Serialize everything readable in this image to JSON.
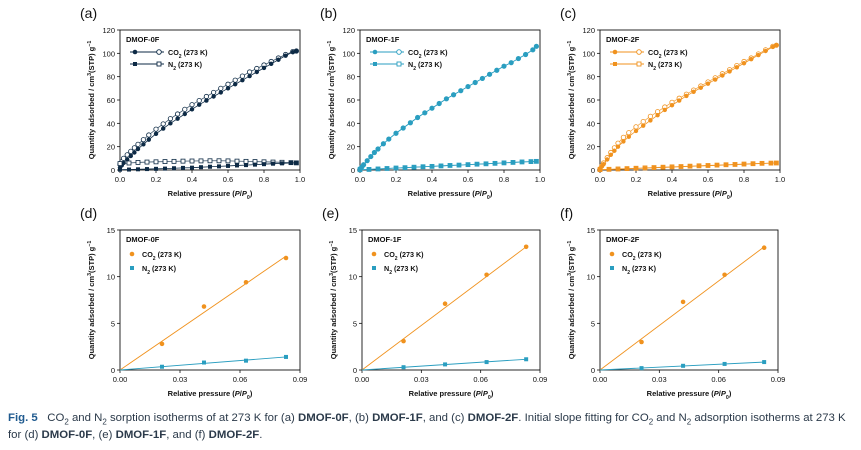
{
  "chart_data": [
    {
      "panel": "(a)",
      "type": "scatter",
      "title": "DMOF-0F",
      "xlabel": "Relative pressure (P/P0)",
      "ylabel": "Quantity adsorbed / cm3(STP) g-1",
      "xlim": [
        0,
        1.0
      ],
      "ylim": [
        0,
        120
      ],
      "xticks": [
        "0.0",
        "0.2",
        "0.4",
        "0.6",
        "0.8",
        "1.0"
      ],
      "yticks": [
        "0",
        "20",
        "40",
        "60",
        "80",
        "100",
        "120"
      ],
      "color": "#0d2a45",
      "series": [
        {
          "name": "CO2 (273 K)",
          "gas": "CO2",
          "x": [
            0.0,
            0.01,
            0.02,
            0.04,
            0.06,
            0.08,
            0.1,
            0.13,
            0.16,
            0.2,
            0.24,
            0.28,
            0.32,
            0.36,
            0.4,
            0.44,
            0.48,
            0.52,
            0.56,
            0.6,
            0.64,
            0.68,
            0.72,
            0.76,
            0.8,
            0.84,
            0.88,
            0.92,
            0.96,
            0.98
          ],
          "ads": [
            2,
            4,
            6,
            9,
            12,
            15,
            18,
            22,
            26,
            31,
            35.5,
            40,
            44,
            48,
            52,
            56,
            59.5,
            63,
            66.5,
            70,
            73.5,
            77,
            80.5,
            84,
            87.5,
            91,
            94.5,
            98,
            101,
            102
          ],
          "des": [
            5,
            7,
            10,
            13,
            16,
            19,
            22,
            26,
            30,
            35,
            39.5,
            44,
            48,
            52,
            56,
            59.5,
            63,
            66.5,
            70,
            73.5,
            77,
            80.5,
            84,
            87,
            90,
            93,
            96,
            99,
            101.5,
            102
          ]
        },
        {
          "name": "N2 (273 K)",
          "gas": "N2",
          "x": [
            0.0,
            0.05,
            0.1,
            0.15,
            0.2,
            0.25,
            0.3,
            0.35,
            0.4,
            0.45,
            0.5,
            0.55,
            0.6,
            0.65,
            0.7,
            0.75,
            0.8,
            0.85,
            0.9,
            0.95,
            0.98
          ],
          "ads": [
            0.3,
            0.4,
            0.6,
            0.8,
            1,
            1.2,
            1.5,
            1.8,
            2,
            2.4,
            2.8,
            3.1,
            3.5,
            3.9,
            4.2,
            4.6,
            5,
            5.4,
            5.7,
            6,
            6.1
          ],
          "des": [
            5.5,
            6,
            6.5,
            6.8,
            7,
            7.2,
            7.4,
            7.6,
            7.7,
            7.8,
            7.9,
            7.9,
            7.8,
            7.6,
            7.4,
            7.2,
            7,
            6.8,
            6.6,
            6.3,
            6.1
          ]
        }
      ]
    },
    {
      "panel": "(b)",
      "type": "scatter",
      "title": "DMOF-1F",
      "xlabel": "Relative pressure (P/P0)",
      "ylabel": "Quantity adsorbed / cm3(STP) g-1",
      "xlim": [
        0,
        1.0
      ],
      "ylim": [
        0,
        120
      ],
      "xticks": [
        "0.0",
        "0.2",
        "0.4",
        "0.6",
        "0.8",
        "1.0"
      ],
      "yticks": [
        "0",
        "20",
        "40",
        "60",
        "80",
        "100",
        "120"
      ],
      "color": "#2a9ec0",
      "series": [
        {
          "name": "CO2 (273 K)",
          "gas": "CO2",
          "x": [
            0.0,
            0.01,
            0.02,
            0.04,
            0.06,
            0.08,
            0.1,
            0.13,
            0.16,
            0.2,
            0.24,
            0.28,
            0.32,
            0.36,
            0.4,
            0.44,
            0.48,
            0.52,
            0.56,
            0.6,
            0.64,
            0.68,
            0.72,
            0.76,
            0.8,
            0.84,
            0.88,
            0.92,
            0.96,
            0.98
          ],
          "ads": [
            1,
            2.5,
            4.5,
            8,
            11.5,
            15,
            18,
            22.5,
            26.5,
            31.5,
            36,
            40.5,
            45,
            49,
            53,
            57,
            61,
            64.5,
            68,
            71.5,
            75,
            78.5,
            82,
            85.5,
            89,
            92,
            95.5,
            99,
            103,
            106
          ],
          "des": [
            1,
            2.5,
            4.5,
            8,
            11.5,
            15,
            18,
            22.5,
            26.5,
            31.5,
            36,
            40.5,
            45,
            49,
            53,
            57,
            61,
            64.5,
            68,
            71.5,
            75,
            78.5,
            82,
            85.5,
            89,
            92,
            95.5,
            99,
            103,
            106
          ]
        },
        {
          "name": "N2 (273 K)",
          "gas": "N2",
          "x": [
            0.0,
            0.05,
            0.1,
            0.15,
            0.2,
            0.25,
            0.3,
            0.35,
            0.4,
            0.45,
            0.5,
            0.55,
            0.6,
            0.65,
            0.7,
            0.75,
            0.8,
            0.85,
            0.9,
            0.95,
            0.98
          ],
          "ads": [
            0.2,
            0.5,
            0.9,
            1.3,
            1.7,
            2,
            2.4,
            2.8,
            3.1,
            3.5,
            3.9,
            4.2,
            4.6,
            5,
            5.3,
            5.7,
            6.1,
            6.5,
            6.9,
            7.2,
            7.4
          ],
          "des": [
            0.2,
            0.5,
            0.9,
            1.3,
            1.7,
            2,
            2.4,
            2.8,
            3.1,
            3.5,
            3.9,
            4.2,
            4.6,
            5,
            5.3,
            5.7,
            6.1,
            6.5,
            6.9,
            7.2,
            7.4
          ]
        }
      ]
    },
    {
      "panel": "(c)",
      "type": "scatter",
      "title": "DMOF-2F",
      "xlabel": "Relative pressure (P/P0)",
      "ylabel": "Quantity adsorbed / cm3(STP) g-1",
      "xlim": [
        0,
        1.0
      ],
      "ylim": [
        0,
        120
      ],
      "xticks": [
        "0.0",
        "0.2",
        "0.4",
        "0.6",
        "0.8",
        "1.0"
      ],
      "yticks": [
        "0",
        "20",
        "40",
        "60",
        "80",
        "100",
        "120"
      ],
      "color": "#f0921e",
      "series": [
        {
          "name": "CO2 (273 K)",
          "gas": "CO2",
          "x": [
            0.0,
            0.01,
            0.02,
            0.04,
            0.06,
            0.08,
            0.1,
            0.13,
            0.16,
            0.2,
            0.24,
            0.28,
            0.32,
            0.36,
            0.4,
            0.44,
            0.48,
            0.52,
            0.56,
            0.6,
            0.64,
            0.68,
            0.72,
            0.76,
            0.8,
            0.84,
            0.88,
            0.92,
            0.96,
            0.98
          ],
          "ads": [
            1,
            3,
            5,
            9,
            13,
            16.5,
            20,
            24.5,
            28.5,
            33.5,
            38,
            42.5,
            47,
            51.5,
            55.5,
            59.5,
            63.5,
            67,
            70.5,
            74,
            77.5,
            81,
            84.5,
            88,
            91.5,
            95,
            98.5,
            102,
            105.5,
            107
          ],
          "des": [
            1,
            3.5,
            6,
            10.5,
            15,
            19,
            23,
            28,
            32,
            37,
            41.5,
            46,
            50,
            54,
            58,
            61.5,
            65,
            68.5,
            72,
            75.5,
            79,
            82.5,
            86,
            89.5,
            93,
            96,
            99.5,
            103,
            106,
            107
          ]
        },
        {
          "name": "N2 (273 K)",
          "gas": "N2",
          "x": [
            0.0,
            0.05,
            0.1,
            0.15,
            0.2,
            0.25,
            0.3,
            0.35,
            0.4,
            0.45,
            0.5,
            0.55,
            0.6,
            0.65,
            0.7,
            0.75,
            0.8,
            0.85,
            0.9,
            0.95,
            0.98
          ],
          "ads": [
            0.2,
            0.4,
            0.7,
            1,
            1.3,
            1.6,
            1.9,
            2.2,
            2.5,
            2.8,
            3.1,
            3.4,
            3.7,
            4,
            4.3,
            4.6,
            5,
            5.3,
            5.6,
            5.9,
            6
          ],
          "des": [
            0.3,
            0.6,
            0.9,
            1.2,
            1.5,
            1.8,
            2.1,
            2.4,
            2.7,
            3,
            3.3,
            3.6,
            3.9,
            4.2,
            4.5,
            4.8,
            5.1,
            5.4,
            5.7,
            5.9,
            6
          ]
        }
      ]
    },
    {
      "panel": "(d)",
      "type": "scatter",
      "title": "DMOF-0F",
      "xlabel": "Relative pressure (P/P0)",
      "ylabel": "Quantity adsorbed / cm3(STP) g-1",
      "xlim": [
        0,
        0.09
      ],
      "ylim": [
        0,
        15
      ],
      "xticks": [
        "0.00",
        "0.03",
        "0.06",
        "0.09"
      ],
      "yticks": [
        "0",
        "5",
        "10",
        "15"
      ],
      "series": [
        {
          "name": "CO2 (273 K)",
          "gas": "CO2",
          "color": "#f0921e",
          "x": [
            0.021,
            0.042,
            0.063,
            0.083
          ],
          "y": [
            2.8,
            6.8,
            9.4,
            12.0
          ],
          "fit": [
            [
              0,
              0
            ],
            [
              0.083,
              12.2
            ]
          ]
        },
        {
          "name": "N2 (273 K)",
          "gas": "N2",
          "color": "#2a9ec0",
          "x": [
            0.021,
            0.042,
            0.063,
            0.083
          ],
          "y": [
            0.35,
            0.8,
            1.0,
            1.4
          ],
          "fit": [
            [
              0,
              0
            ],
            [
              0.083,
              1.4
            ]
          ]
        }
      ]
    },
    {
      "panel": "(e)",
      "type": "scatter",
      "title": "DMOF-1F",
      "xlabel": "Relative pressure (P/P0)",
      "ylabel": "Quantity adsorbed / cm3(STP) g-1",
      "xlim": [
        0,
        0.09
      ],
      "ylim": [
        0,
        15
      ],
      "xticks": [
        "0.00",
        "0.03",
        "0.06",
        "0.09"
      ],
      "yticks": [
        "0",
        "5",
        "10",
        "15"
      ],
      "series": [
        {
          "name": "CO2 (273 K)",
          "gas": "CO2",
          "color": "#f0921e",
          "x": [
            0.021,
            0.042,
            0.063,
            0.083
          ],
          "y": [
            3.1,
            7.1,
            10.2,
            13.2
          ],
          "fit": [
            [
              0,
              0
            ],
            [
              0.083,
              13.2
            ]
          ]
        },
        {
          "name": "N2 (273 K)",
          "gas": "N2",
          "color": "#2a9ec0",
          "x": [
            0.021,
            0.042,
            0.063,
            0.083
          ],
          "y": [
            0.3,
            0.6,
            0.85,
            1.15
          ],
          "fit": [
            [
              0,
              0
            ],
            [
              0.083,
              1.15
            ]
          ]
        }
      ]
    },
    {
      "panel": "(f)",
      "type": "scatter",
      "title": "DMOF-2F",
      "xlabel": "Relative pressure (P/P0)",
      "ylabel": "Quantity adsorbed / cm3(STP) g-1",
      "xlim": [
        0,
        0.09
      ],
      "ylim": [
        0,
        15
      ],
      "xticks": [
        "0.00",
        "0.03",
        "0.06",
        "0.09"
      ],
      "yticks": [
        "0",
        "5",
        "10",
        "15"
      ],
      "series": [
        {
          "name": "CO2 (273 K)",
          "gas": "CO2",
          "color": "#f0921e",
          "x": [
            0.021,
            0.042,
            0.063,
            0.083
          ],
          "y": [
            3.0,
            7.3,
            10.2,
            13.1
          ],
          "fit": [
            [
              0,
              0
            ],
            [
              0.083,
              13.2
            ]
          ]
        },
        {
          "name": "N2 (273 K)",
          "gas": "N2",
          "color": "#2a9ec0",
          "x": [
            0.021,
            0.042,
            0.063,
            0.083
          ],
          "y": [
            0.2,
            0.45,
            0.65,
            0.85
          ],
          "fit": [
            [
              0,
              0
            ],
            [
              0.083,
              0.85
            ]
          ]
        }
      ]
    }
  ],
  "caption": {
    "label": "Fig. 5",
    "p1": "CO",
    "p2": " and N",
    "p3": " sorption isotherms of at 273 K for (a) ",
    "m0": "DMOF-0F",
    "p4": ", (b) ",
    "m1": "DMOF-1F",
    "p5": ", and (c) ",
    "m2": "DMOF-2F",
    "p6": ". Initial slope fitting for CO",
    "p7": " and N",
    "p8": " adsorption isotherms at 273 K for (d) ",
    "p9": ", (e) ",
    "p10": ", and (f) ",
    "p11": ".",
    "sub2": "2"
  }
}
